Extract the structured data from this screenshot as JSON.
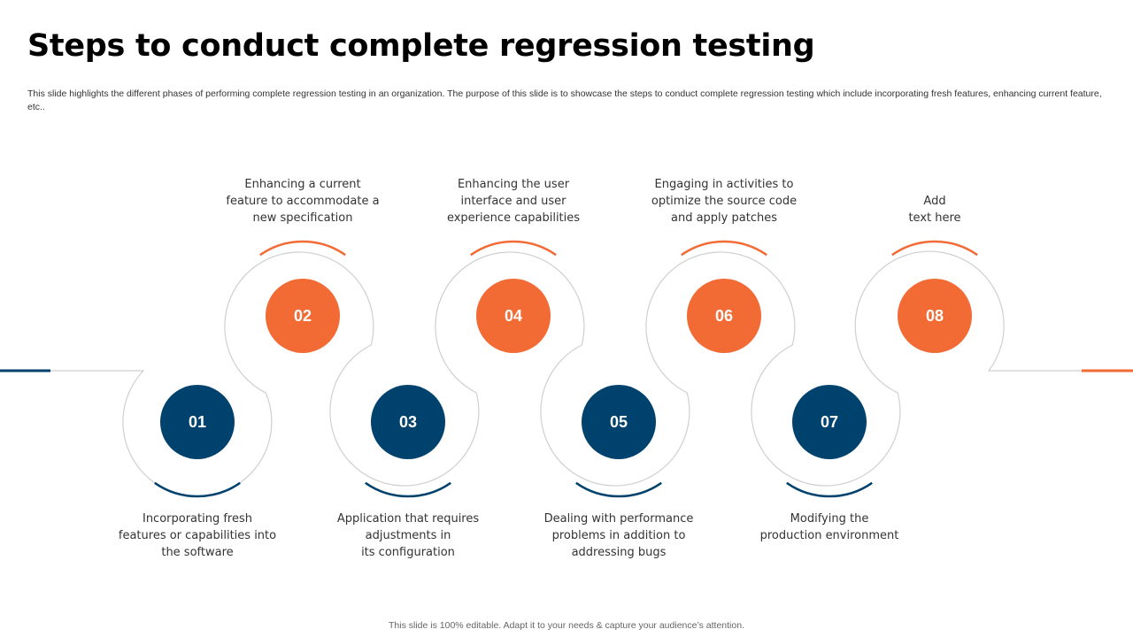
{
  "slide": {
    "title": "Steps to conduct complete regression testing",
    "subtitle": "This slide highlights the different phases of performing complete regression testing in an organization. The purpose of this slide is to showcase the steps to conduct complete regression testing which include incorporating fresh features, enhancing current feature, etc..",
    "footer": "This slide is 100% editable. Adapt it to your needs & capture your audience’s attention."
  },
  "colors": {
    "navy": "#00426E",
    "orange": "#F26B35",
    "outline": "#CFCFCF",
    "text": "#333333"
  },
  "steps": [
    {
      "number": "01",
      "lines": [
        "Incorporating fresh",
        "features or capabilities into",
        "the software"
      ]
    },
    {
      "number": "02",
      "lines": [
        "Enhancing a current",
        "feature to accommodate a",
        "new specification"
      ]
    },
    {
      "number": "03",
      "lines": [
        "Application that requires",
        "adjustments in",
        "its configuration"
      ]
    },
    {
      "number": "04",
      "lines": [
        "Enhancing the user",
        "interface and user",
        "experience capabilities"
      ]
    },
    {
      "number": "05",
      "lines": [
        "Dealing with performance",
        "problems in addition to",
        "addressing bugs"
      ]
    },
    {
      "number": "06",
      "lines": [
        "Engaging in activities to",
        "optimize the source code",
        "and apply patches"
      ]
    },
    {
      "number": "07",
      "lines": [
        "Modifying the",
        "production environment"
      ]
    },
    {
      "number": "08",
      "lines": [
        "Add",
        "text here"
      ]
    }
  ]
}
